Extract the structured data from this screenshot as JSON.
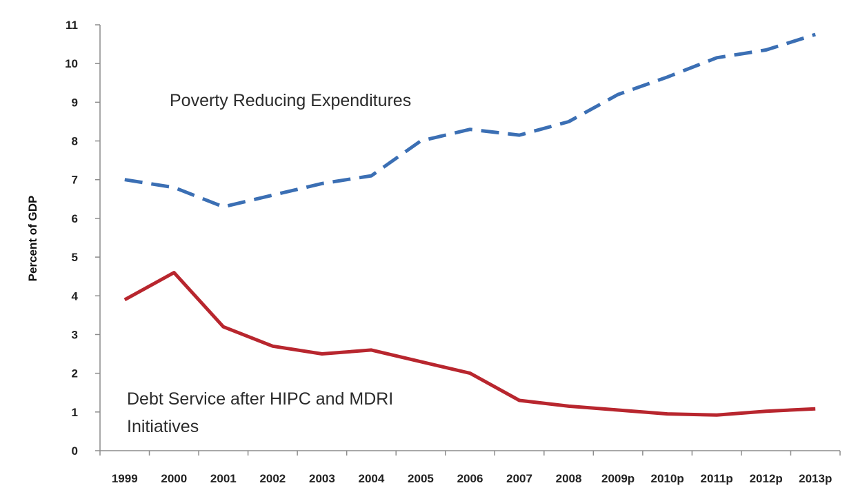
{
  "chart_data": {
    "type": "line",
    "title": "",
    "xlabel": "",
    "ylabel": "Percent of GDP",
    "ylim": [
      0,
      11
    ],
    "yticks": [
      "0",
      "1",
      "2",
      "3",
      "4",
      "5",
      "6",
      "7",
      "8",
      "9",
      "10",
      "11"
    ],
    "categories": [
      "1999",
      "2000",
      "2001",
      "2002",
      "2003",
      "2004",
      "2005",
      "2006",
      "2007",
      "2008",
      "2009p",
      "2010p",
      "2011p",
      "2012p",
      "2013p"
    ],
    "grid": false,
    "legend": "none",
    "series": [
      {
        "name": "Poverty Reducing Expenditures",
        "style": "dashed",
        "color": "#3b6fb4",
        "values": [
          7.0,
          6.8,
          6.3,
          6.6,
          6.9,
          7.1,
          8.0,
          8.3,
          8.15,
          8.5,
          9.2,
          9.65,
          10.15,
          10.35,
          10.75
        ]
      },
      {
        "name": "Debt Service after HIPC and MDRI Initiatives",
        "style": "solid",
        "color": "#b8262e",
        "values": [
          3.9,
          4.6,
          3.2,
          2.7,
          2.5,
          2.6,
          2.3,
          2.0,
          1.3,
          1.15,
          1.05,
          0.95,
          0.92,
          1.02,
          1.08
        ]
      }
    ],
    "annotations": [
      {
        "label": "Poverty Reducing Expenditures"
      },
      {
        "label_line1": "Debt Service after HIPC and MDRI",
        "label_line2": "Initiatives"
      }
    ]
  }
}
